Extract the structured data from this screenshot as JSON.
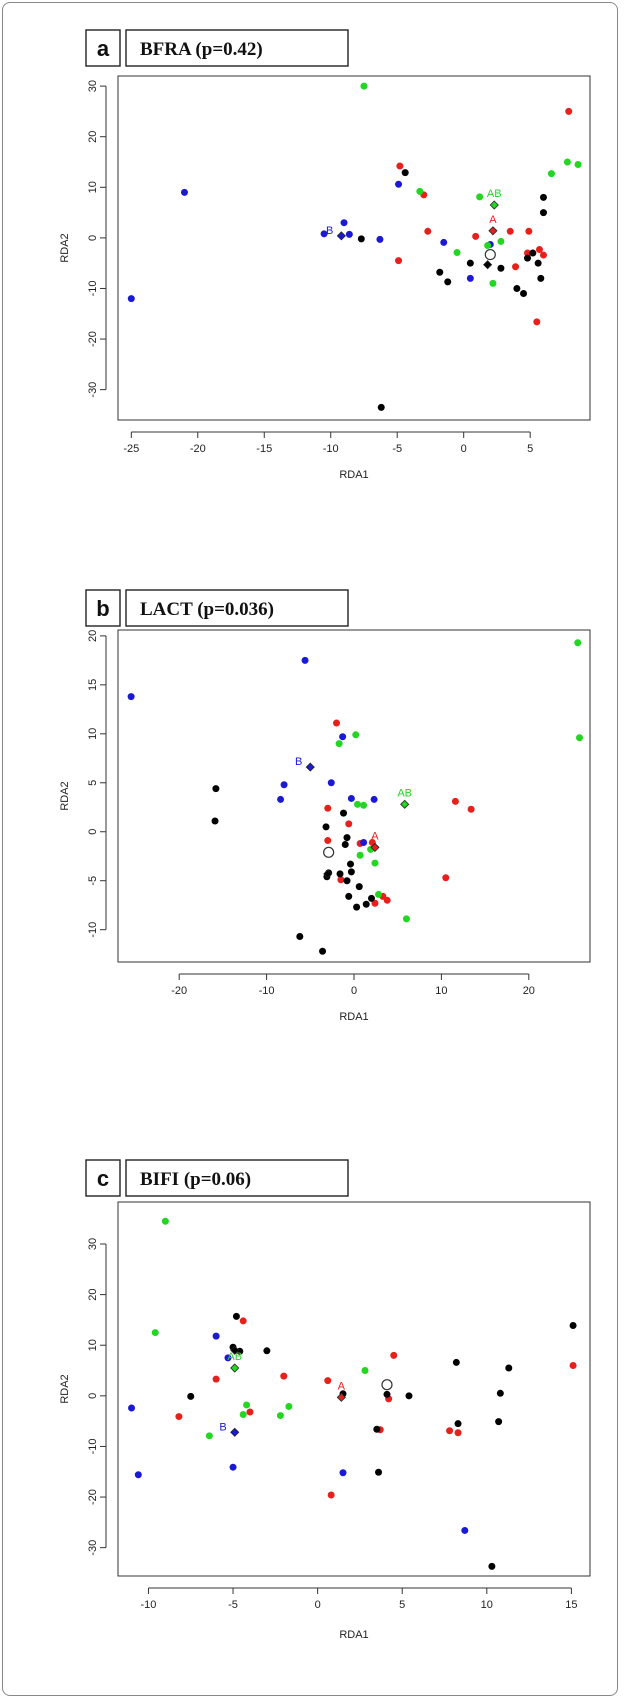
{
  "colors": {
    "A": "#e8201b",
    "B": "#1a1ad6",
    "AB": "#22d622",
    "O": "#000000"
  },
  "chart_data": [
    {
      "type": "scatter",
      "panel": "a",
      "title": "BFRA (p=0.42)",
      "xlabel": "RDA1",
      "ylabel": "RDA2",
      "xlim": [
        -26,
        9.5
      ],
      "ylim": [
        -36,
        32
      ],
      "xticks": [
        -25,
        -20,
        -15,
        -10,
        -5,
        0,
        5
      ],
      "yticks": [
        -30,
        -20,
        -10,
        0,
        10,
        20,
        30
      ],
      "series": [
        {
          "group": "A",
          "color": "#e8201b",
          "points": [
            [
              -4.8,
              14.2
            ],
            [
              -3,
              8.5
            ],
            [
              -2.7,
              1.3
            ],
            [
              0.9,
              0.3
            ],
            [
              3.5,
              1.3
            ],
            [
              4.9,
              1.3
            ],
            [
              4.8,
              -3
            ],
            [
              5.7,
              -2.3
            ],
            [
              6,
              -3.4
            ],
            [
              3.9,
              -5.7
            ],
            [
              5.5,
              -16.6
            ],
            [
              -4.9,
              -4.5
            ],
            [
              7.9,
              25
            ]
          ]
        },
        {
          "group": "B",
          "color": "#1a1ad6",
          "points": [
            [
              -25,
              -12
            ],
            [
              -21,
              9
            ],
            [
              -10.5,
              0.8
            ],
            [
              -9,
              3
            ],
            [
              -8.6,
              0.7
            ],
            [
              -6.3,
              -0.3
            ],
            [
              -4.9,
              10.6
            ],
            [
              -1.5,
              -0.9
            ],
            [
              0.5,
              -8
            ],
            [
              2,
              -1.3
            ]
          ]
        },
        {
          "group": "AB",
          "color": "#22d622",
          "points": [
            [
              -7.5,
              30
            ],
            [
              -3.3,
              9.2
            ],
            [
              -0.5,
              -2.9
            ],
            [
              1.2,
              8.1
            ],
            [
              1.8,
              -1.5
            ],
            [
              2.8,
              -0.7
            ],
            [
              2.2,
              -9
            ],
            [
              6.6,
              12.7
            ],
            [
              7.8,
              15
            ],
            [
              8.6,
              14.5
            ]
          ]
        },
        {
          "group": "O",
          "color": "#000000",
          "points": [
            [
              -4.4,
              12.9
            ],
            [
              -7.7,
              -0.2
            ],
            [
              -6.2,
              -33.5
            ],
            [
              -1.8,
              -6.8
            ],
            [
              -1.2,
              -8.7
            ],
            [
              0.5,
              -5
            ],
            [
              2.8,
              -6
            ],
            [
              4,
              -10
            ],
            [
              4.5,
              -11
            ],
            [
              5.2,
              -3
            ],
            [
              5.6,
              -5
            ],
            [
              5.8,
              -8
            ],
            [
              6,
              5
            ],
            [
              6,
              8
            ],
            [
              4.8,
              -4
            ]
          ]
        }
      ],
      "centroids": [
        {
          "label": "A",
          "color": "#e8201b",
          "x": 2.2,
          "y": 1.4
        },
        {
          "label": "B",
          "color": "#1a1ad6",
          "x": -9.2,
          "y": 0.4
        },
        {
          "label": "AB",
          "color": "#22d622",
          "x": 2.3,
          "y": 6.5
        },
        {
          "label": "",
          "color": "#000000",
          "x": 1.8,
          "y": -5.3
        }
      ],
      "hollow_points": [
        {
          "x": 2,
          "y": -3.3
        }
      ]
    },
    {
      "type": "scatter",
      "panel": "b",
      "title": "LACT (p=0.036)",
      "xlabel": "RDA1",
      "ylabel": "RDA2",
      "xlim": [
        -27,
        27
      ],
      "ylim": [
        -13.3,
        20.6
      ],
      "xticks": [
        -20,
        -10,
        0,
        10,
        20
      ],
      "yticks": [
        -10,
        -5,
        0,
        5,
        10,
        15,
        20
      ],
      "series": [
        {
          "group": "A",
          "color": "#e8201b",
          "points": [
            [
              -2,
              11.1
            ],
            [
              -3,
              2.4
            ],
            [
              -3,
              -0.9
            ],
            [
              -1.5,
              -4.9
            ],
            [
              -0.6,
              0.8
            ],
            [
              0.7,
              -1.2
            ],
            [
              2.1,
              -1.1
            ],
            [
              3.3,
              -6.6
            ],
            [
              3.8,
              -7
            ],
            [
              2.4,
              -7.3
            ],
            [
              11.6,
              3.1
            ],
            [
              13.4,
              2.3
            ],
            [
              10.5,
              -4.7
            ]
          ]
        },
        {
          "group": "B",
          "color": "#1a1ad6",
          "points": [
            [
              -25.5,
              13.8
            ],
            [
              -5.6,
              17.5
            ],
            [
              -8,
              4.8
            ],
            [
              -8.4,
              3.3
            ],
            [
              -2.6,
              5
            ],
            [
              -1.3,
              9.7
            ],
            [
              -0.3,
              3.4
            ],
            [
              1.1,
              -1.1
            ],
            [
              2.3,
              3.3
            ]
          ]
        },
        {
          "group": "AB",
          "color": "#22d622",
          "points": [
            [
              25.6,
              19.3
            ],
            [
              25.8,
              9.6
            ],
            [
              -1.7,
              9
            ],
            [
              0.2,
              9.9
            ],
            [
              0.4,
              2.8
            ],
            [
              1.1,
              2.7
            ],
            [
              0.7,
              -2.4
            ],
            [
              1.9,
              -1.8
            ],
            [
              2.4,
              -3.2
            ],
            [
              2.8,
              -6.4
            ],
            [
              6,
              -8.9
            ]
          ]
        },
        {
          "group": "O",
          "color": "#000000",
          "points": [
            [
              -15.8,
              4.4
            ],
            [
              -15.9,
              1.1
            ],
            [
              -6.2,
              -10.7
            ],
            [
              -3.6,
              -12.2
            ],
            [
              -3.2,
              0.5
            ],
            [
              -1.2,
              1.9
            ],
            [
              -0.4,
              -3.3
            ],
            [
              -0.8,
              -0.6
            ],
            [
              -1,
              -1.3
            ],
            [
              -1.6,
              -4.3
            ],
            [
              -0.6,
              -6.6
            ],
            [
              0.3,
              -7.7
            ],
            [
              0.6,
              -5.6
            ],
            [
              1.4,
              -7.4
            ],
            [
              2,
              -6.8
            ],
            [
              -2.9,
              -4.2
            ],
            [
              -3.1,
              -4.6
            ],
            [
              -0.8,
              -5
            ],
            [
              -0.3,
              -4.1
            ]
          ]
        }
      ],
      "centroids": [
        {
          "label": "A",
          "color": "#e8201b",
          "x": 2.4,
          "y": -1.6
        },
        {
          "label": "B",
          "color": "#1a1ad6",
          "x": -5,
          "y": 6.6
        },
        {
          "label": "AB",
          "color": "#22d622",
          "x": 5.8,
          "y": 2.8
        },
        {
          "label": "",
          "color": "#000000",
          "x": -3,
          "y": -4.3
        }
      ],
      "hollow_points": [
        {
          "x": -2.9,
          "y": -2.1
        }
      ]
    },
    {
      "type": "scatter",
      "panel": "c",
      "title": "BIFI (p=0.06)",
      "xlabel": "RDA1",
      "ylabel": "RDA2",
      "xlim": [
        -11.8,
        16.1
      ],
      "ylim": [
        -35.6,
        38.3
      ],
      "xticks": [
        -10,
        -5,
        0,
        5,
        10,
        15
      ],
      "yticks": [
        -30,
        -20,
        -10,
        0,
        10,
        20,
        30
      ],
      "series": [
        {
          "group": "A",
          "color": "#e8201b",
          "points": [
            [
              -4.4,
              14.8
            ],
            [
              -6,
              3.3
            ],
            [
              -8.2,
              -4.1
            ],
            [
              -4,
              -3.2
            ],
            [
              -2,
              3.9
            ],
            [
              0.6,
              3
            ],
            [
              0.8,
              -19.6
            ],
            [
              4.5,
              8
            ],
            [
              4.2,
              -0.6
            ],
            [
              3.7,
              -6.7
            ],
            [
              7.8,
              -6.9
            ],
            [
              8.3,
              -7.3
            ],
            [
              15.1,
              6
            ]
          ]
        },
        {
          "group": "B",
          "color": "#1a1ad6",
          "points": [
            [
              -11,
              -2.4
            ],
            [
              -10.6,
              -15.6
            ],
            [
              -6,
              11.8
            ],
            [
              -5.3,
              7.5
            ],
            [
              -5,
              -14.1
            ],
            [
              1.5,
              -15.2
            ],
            [
              8.7,
              -26.6
            ]
          ]
        },
        {
          "group": "AB",
          "color": "#22d622",
          "points": [
            [
              -9,
              34.5
            ],
            [
              -9.6,
              12.5
            ],
            [
              -6.4,
              -7.9
            ],
            [
              -4.2,
              -1.8
            ],
            [
              -4.4,
              -3.7
            ],
            [
              -2.2,
              -3.9
            ],
            [
              -1.7,
              -2.1
            ],
            [
              2.8,
              5
            ]
          ]
        },
        {
          "group": "O",
          "color": "#000000",
          "points": [
            [
              -4.8,
              15.7
            ],
            [
              -5,
              9.6
            ],
            [
              -3,
              8.9
            ],
            [
              -4.6,
              8.8
            ],
            [
              -7.5,
              -0.1
            ],
            [
              1.5,
              0.4
            ],
            [
              3.5,
              -6.6
            ],
            [
              3.6,
              -15.1
            ],
            [
              4.1,
              0.3
            ],
            [
              5.4,
              0
            ],
            [
              8.2,
              6.6
            ],
            [
              8.3,
              -5.5
            ],
            [
              10.8,
              0.5
            ],
            [
              10.7,
              -5.1
            ],
            [
              11.3,
              5.5
            ],
            [
              10.3,
              -33.7
            ],
            [
              15.1,
              13.9
            ]
          ]
        }
      ],
      "centroids": [
        {
          "label": "A",
          "color": "#e8201b",
          "x": 1.4,
          "y": -0.3
        },
        {
          "label": "B",
          "color": "#1a1ad6",
          "x": -4.9,
          "y": -7.2
        },
        {
          "label": "AB",
          "color": "#22d622",
          "x": -4.9,
          "y": 5.5
        },
        {
          "label": "",
          "color": "#000000",
          "x": -4.9,
          "y": 9
        }
      ],
      "hollow_points": [
        {
          "x": 4.1,
          "y": 2.2
        }
      ]
    }
  ]
}
